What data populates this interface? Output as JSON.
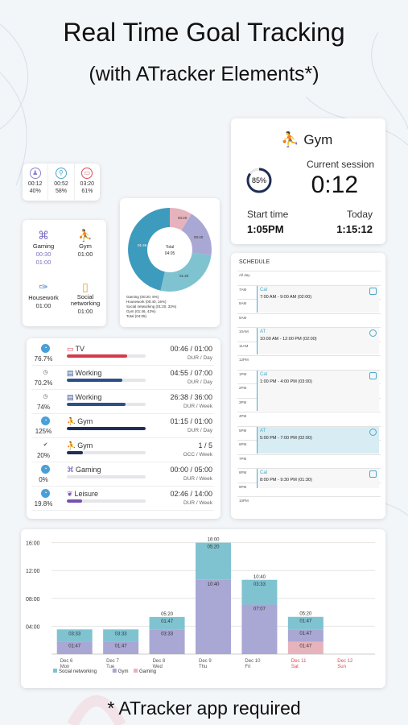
{
  "header": {
    "title": "Real Time Goal Tracking",
    "subtitle": "(with ATracker Elements*)"
  },
  "stats3": [
    {
      "icon": "gaming-icon",
      "time": "00:12",
      "pct": "40%",
      "color": "#8b86c9"
    },
    {
      "icon": "bike-icon",
      "time": "00:52",
      "pct": "58%",
      "color": "#4aa9c9"
    },
    {
      "icon": "tv-icon",
      "time": "03:20",
      "pct": "61%",
      "color": "#d94b5a"
    }
  ],
  "activities": [
    {
      "name": "Gaming",
      "icon": "gamepad-icon",
      "lines": [
        "00:30",
        "01:00"
      ],
      "color": "#7b6fc4"
    },
    {
      "name": "Gym",
      "icon": "treadmill-icon",
      "lines": [
        "01:00"
      ],
      "color": "#4a4a6a"
    },
    {
      "name": "Housework",
      "icon": "broom-icon",
      "lines": [
        "01:00"
      ],
      "color": "#5a8fc8"
    },
    {
      "name": "Social networking",
      "icon": "phone-icon",
      "lines": [
        "01:00"
      ],
      "color": "#e0a030"
    }
  ],
  "donut": {
    "center_label": "Total",
    "center_value": "04:05",
    "slice_labels": [
      "01:46",
      "00:20",
      "00:40",
      "01:20"
    ],
    "legend": [
      "Gaming (00:20, 8%)",
      "Housework (00:40, 16%)",
      "Social networking (01:20, 33%)",
      "Gym (01:46, 43%)",
      "Total (04:05)"
    ]
  },
  "gym": {
    "title": "Gym",
    "percent": "85%",
    "current_label": "Current session",
    "current_value": "0:12",
    "start_label": "Start time",
    "start_value": "1:05PM",
    "today_label": "Today",
    "today_value": "1:15:12"
  },
  "schedule": {
    "title": "SCHEDULE",
    "hours": [
      "All day",
      "7AM",
      "8AM",
      "9AM",
      "10AM",
      "11AM",
      "12PM",
      "1PM",
      "2PM",
      "3PM",
      "4PM",
      "5PM",
      "6PM",
      "7PM",
      "8PM",
      "9PM",
      "10PM"
    ],
    "events": [
      {
        "name": "Cal",
        "time": "7:00 AM - 9:00 AM (02:00)",
        "kind": "calendar",
        "highlight": false
      },
      {
        "name": "AT",
        "time": "10:00 AM - 12:00 PM (02:00)",
        "kind": "clock",
        "highlight": false
      },
      {
        "name": "Cal",
        "time": "1:00 PM - 4:00 PM (03:00)",
        "kind": "calendar",
        "highlight": false
      },
      {
        "name": "AT",
        "time": "5:00 PM - 7:00 PM (02:00)",
        "kind": "clock",
        "highlight": true
      },
      {
        "name": "Cal",
        "time": "8:00 PM - 9:30 PM (01:30)",
        "kind": "calendar",
        "highlight": false
      }
    ]
  },
  "goals": [
    {
      "icon": "timer-icon",
      "name": "TV",
      "name_icon": "tv-icon",
      "pct": "76.7%",
      "value": "00:46 / 01:00",
      "unit": "DUR / Day",
      "progress": 0.767,
      "color": "#d63a4a"
    },
    {
      "icon": "clock-icon",
      "name": "Working",
      "name_icon": "briefcase-icon",
      "pct": "70.2%",
      "value": "04:55 / 07:00",
      "unit": "DUR / Day",
      "progress": 0.702,
      "color": "#2d4f8a"
    },
    {
      "icon": "clock-icon",
      "name": "Working",
      "name_icon": "briefcase-icon",
      "pct": "74%",
      "value": "26:38 / 36:00",
      "unit": "DUR / Week",
      "progress": 0.74,
      "color": "#2d4f8a"
    },
    {
      "icon": "timer-icon",
      "name": "Gym",
      "name_icon": "treadmill-icon",
      "pct": "125%",
      "value": "01:15 / 01:00",
      "unit": "DUR / Day",
      "progress": 1.0,
      "color": "#1f2f55"
    },
    {
      "icon": "check-icon",
      "name": "Gym",
      "name_icon": "treadmill-icon",
      "pct": "20%",
      "value": "1 / 5",
      "unit": "OCC / Week",
      "progress": 0.2,
      "color": "#1f2f55"
    },
    {
      "icon": "timer-icon",
      "name": "Gaming",
      "name_icon": "gamepad-icon",
      "pct": "0%",
      "value": "00:00 / 05:00",
      "unit": "DUR / Week",
      "progress": 0.0,
      "color": "#6b5fb0"
    },
    {
      "icon": "timer-icon",
      "name": "Leisure",
      "name_icon": "leaf-icon",
      "pct": "19.8%",
      "value": "02:46 / 14:00",
      "unit": "DUR / Week",
      "progress": 0.198,
      "color": "#7a4fb0"
    }
  ],
  "chart_data": {
    "type": "bar",
    "stacked": true,
    "y_tick_labels": [
      "04:00",
      "08:00",
      "12:00",
      "16:00"
    ],
    "ylim": [
      0,
      17
    ],
    "categories": [
      "Dec 6",
      "Dec 7",
      "Dec 8",
      "Dec 9",
      "Dec 10",
      "Dec 11",
      "Dec 12"
    ],
    "weekdays": [
      "Mon",
      "Tue",
      "Wed",
      "Thu",
      "Fri",
      "Sat",
      "Sun"
    ],
    "weekday_colors": [
      "#555555",
      "#555555",
      "#555555",
      "#555555",
      "#555555",
      "#d94b5a",
      "#d94b5a"
    ],
    "series": [
      {
        "name": "Gaming",
        "color": "#e6b3bd",
        "values": [
          0,
          0,
          0,
          0,
          0,
          1.783,
          0
        ],
        "labels": [
          "",
          "",
          "",
          "",
          "",
          "01:47",
          ""
        ]
      },
      {
        "name": "Gym",
        "color": "#a9a7d4",
        "values": [
          1.783,
          1.783,
          3.55,
          10.667,
          7.117,
          1.783,
          0
        ],
        "labels": [
          "01:47",
          "01:47",
          "03:33",
          "10:40",
          "07:07",
          "01:47",
          ""
        ]
      },
      {
        "name": "Social networking",
        "color": "#7fc3d1",
        "values": [
          1.767,
          1.767,
          1.783,
          5.333,
          3.55,
          1.783,
          0
        ],
        "labels": [
          "03:33",
          "03:33",
          "01:47",
          "05:20",
          "03:33",
          "01:47",
          ""
        ]
      }
    ],
    "totals": [
      "",
      "",
      "05:20",
      "16:00",
      "10:40",
      "05:20",
      ""
    ],
    "legend": [
      "Social networking",
      "Gym",
      "Gaming"
    ]
  },
  "footer": {
    "text": "* ATracker app required"
  }
}
